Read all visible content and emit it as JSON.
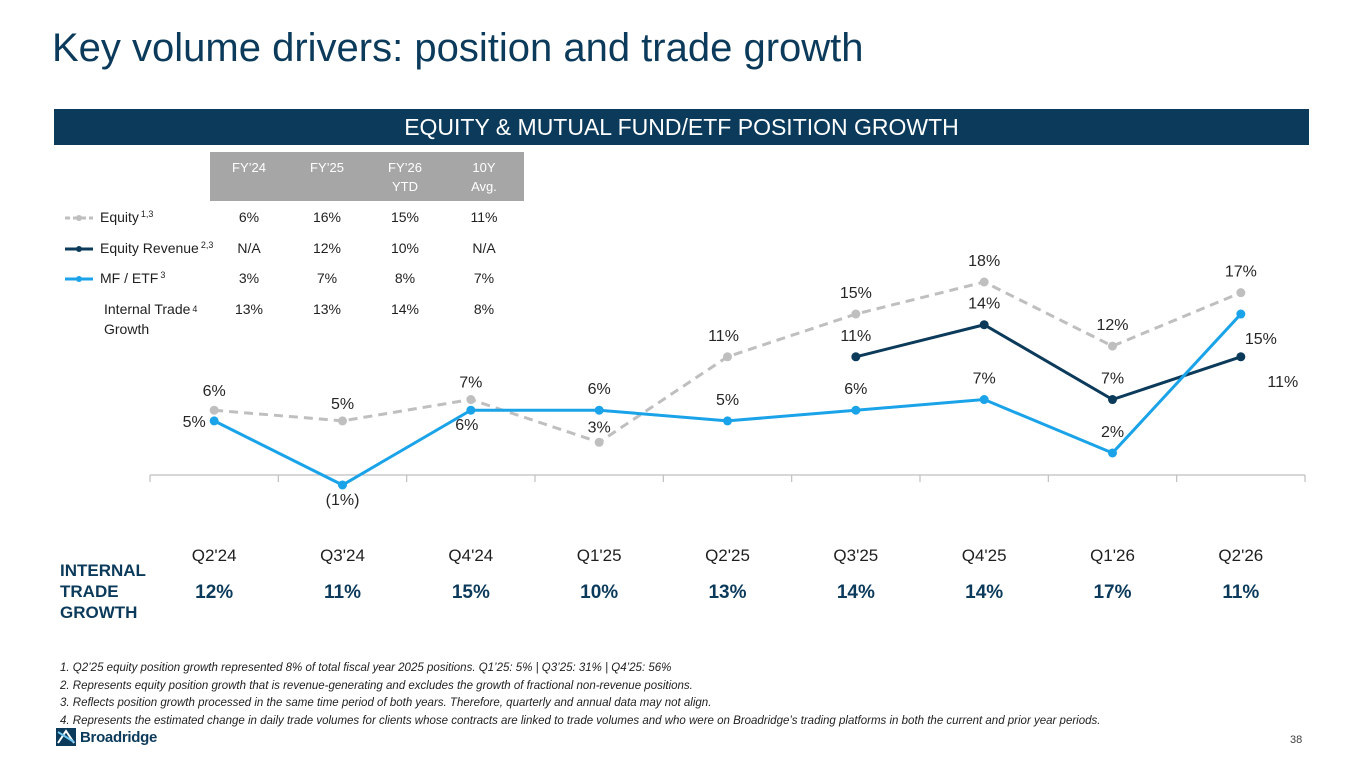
{
  "title": "Key volume drivers: position and trade growth",
  "banner": "EQUITY & MUTUAL FUND/ETF POSITION GROWTH",
  "legend_table": {
    "headers": [
      "FY’24",
      "FY’25",
      "FY’26 YTD",
      "10Y Avg."
    ],
    "rows": [
      {
        "label": "Equity",
        "sup": "1,3",
        "values": [
          "6%",
          "16%",
          "15%",
          "11%"
        ]
      },
      {
        "label": "Equity Revenue",
        "sup": "2,3",
        "values": [
          "N/A",
          "12%",
          "10%",
          "N/A"
        ]
      },
      {
        "label": "MF / ETF",
        "sup": "3",
        "values": [
          "3%",
          "7%",
          "8%",
          "7%"
        ]
      },
      {
        "label": "Internal Trade Growth",
        "sup": "4",
        "values": [
          "13%",
          "13%",
          "14%",
          "8%"
        ]
      }
    ]
  },
  "chart_data": {
    "type": "line",
    "categories": [
      "Q2'24",
      "Q3'24",
      "Q4'24",
      "Q1'25",
      "Q2'25",
      "Q3'25",
      "Q4'25",
      "Q1'26",
      "Q2'26"
    ],
    "series": [
      {
        "name": "Equity",
        "color": "#bfbfbf",
        "style": "dashed",
        "values": [
          6,
          5,
          7,
          3,
          11,
          15,
          18,
          12,
          17
        ],
        "labels": [
          "6%",
          "5%",
          "7%",
          "3%",
          "11%",
          "15%",
          "18%",
          "12%",
          "17%"
        ]
      },
      {
        "name": "Equity Revenue",
        "color": "#0b3a5b",
        "style": "solid",
        "values": [
          null,
          null,
          null,
          null,
          null,
          11,
          14,
          7,
          11
        ],
        "labels": [
          null,
          null,
          null,
          null,
          null,
          "11%",
          "14%",
          "7%",
          "11%"
        ]
      },
      {
        "name": "MF / ETF",
        "color": "#1aa3e8",
        "style": "solid",
        "values": [
          5,
          -1,
          6,
          6,
          5,
          6,
          7,
          2,
          15
        ],
        "labels": [
          "5%",
          "(1%)",
          "6%",
          "6%",
          "5%",
          "6%",
          "7%",
          "2%",
          "15%"
        ]
      }
    ],
    "ylim": [
      -1,
      18
    ]
  },
  "internal_trade_growth": {
    "label": "INTERNAL TRADE GROWTH",
    "values": [
      "12%",
      "11%",
      "15%",
      "10%",
      "13%",
      "14%",
      "14%",
      "17%",
      "11%"
    ]
  },
  "footnotes": [
    "1. Q2’25 equity position growth represented 8% of total fiscal year 2025 positions. Q1’25: 5% | Q3’25: 31% | Q4’25: 56%",
    "2. Represents equity position growth that is revenue-generating and excludes the growth of fractional non-revenue positions.",
    "3. Reflects position growth processed in the same time period of both years. Therefore, quarterly and annual data may not align.",
    "4. Represents the estimated change in daily trade volumes for clients whose contracts are linked to trade volumes and who were on Broadridge’s trading platforms in both the current and prior year periods."
  ],
  "logo_text": "Broadridge",
  "page_number": "38"
}
